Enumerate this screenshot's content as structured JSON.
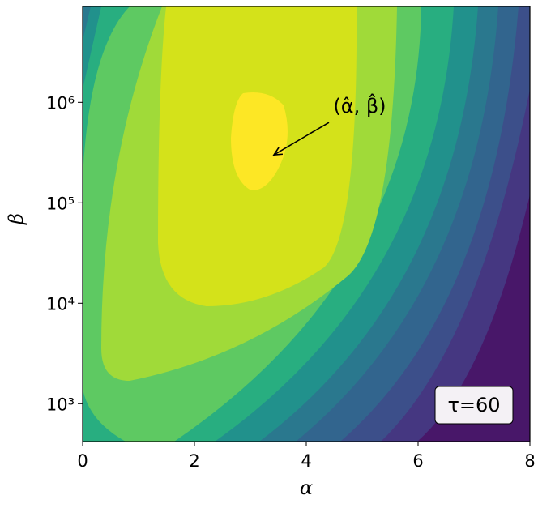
{
  "chart_data": {
    "type": "contour",
    "xlabel": "α",
    "ylabel": "β",
    "xlim": [
      0,
      8
    ],
    "xticks": [
      0,
      2,
      4,
      6,
      8
    ],
    "ylim": [
      420,
      9000000
    ],
    "yscale": "log",
    "yticks": [
      {
        "value": 1000,
        "label": "10³"
      },
      {
        "value": 10000,
        "label": "10⁴"
      },
      {
        "value": 100000,
        "label": "10⁵"
      },
      {
        "value": 1000000,
        "label": "10⁶"
      }
    ],
    "colors": [
      "#481769",
      "#453781",
      "#3c4f8a",
      "#32658e",
      "#2a788e",
      "#21918c",
      "#28ae80",
      "#5ec962",
      "#a0da39",
      "#d4e21a",
      "#fde725"
    ],
    "annotations": [
      {
        "text": "(α̂, β̂)",
        "xy": [
          3.42,
          300000
        ]
      },
      {
        "text": "τ=60"
      }
    ]
  }
}
